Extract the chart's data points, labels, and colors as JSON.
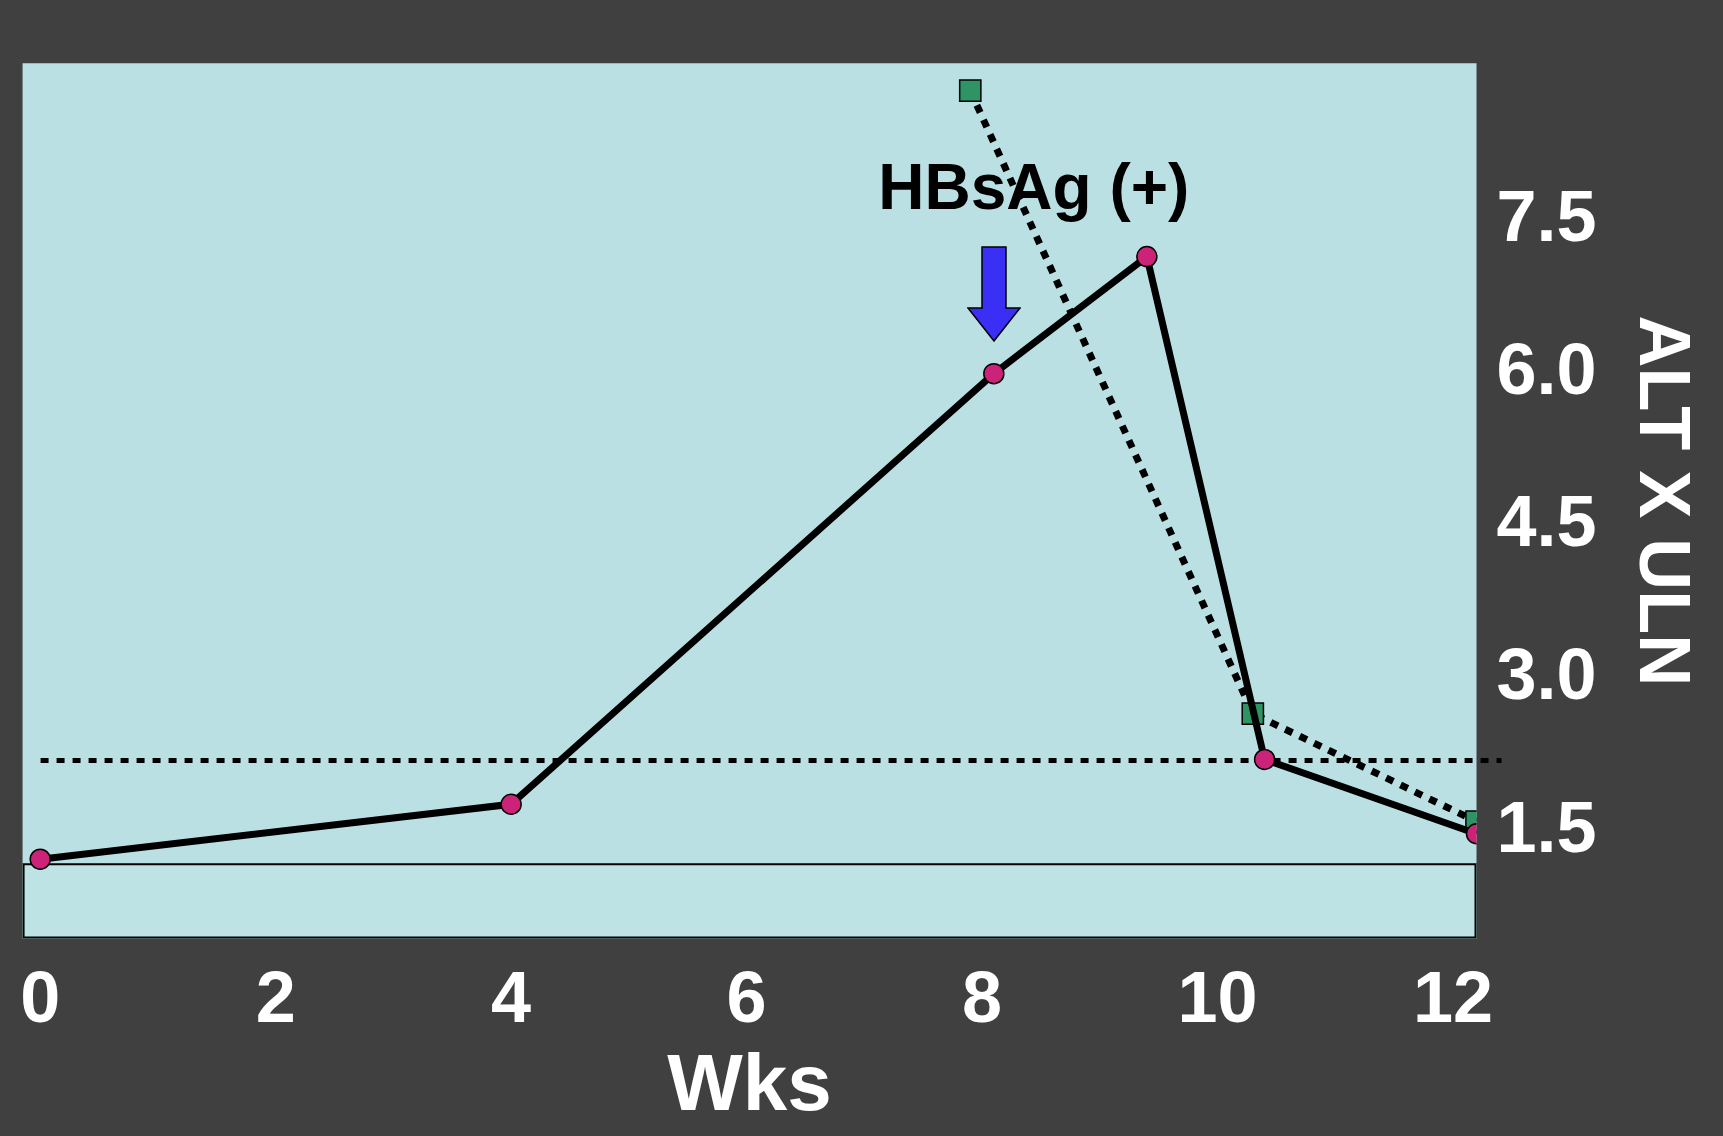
{
  "chart_data": {
    "type": "line",
    "xlabel": "Wks",
    "ylabel": "ALT X ULN",
    "annotations": [
      {
        "text": "HBsAg (+)",
        "x": 8.1,
        "y": 6.0
      }
    ],
    "xlim": [
      -0.15,
      12.2
    ],
    "xticks": [
      0,
      2,
      4,
      6,
      8,
      10,
      12
    ],
    "ylim": [
      0.45,
      9.05
    ],
    "yticks": [
      1.5,
      {
        "value": 3,
        "label": "3.0"
      },
      4.5,
      {
        "value": 6,
        "label": "6.0"
      },
      7.5
    ],
    "series": [
      {
        "color": "#000000",
        "x": [
          0,
          4,
          8.1,
          9.4,
          10.4,
          12.2
        ],
        "values": [
          1.23,
          1.77,
          6.0,
          7.15,
          2.21,
          1.48
        ],
        "marker": "circle",
        "line_style": "solid"
      },
      {
        "color": "#2e9466",
        "x": [
          7.9,
          10.3,
          12.2
        ],
        "values": [
          8.78,
          2.66,
          1.6
        ],
        "marker": "square",
        "line_style": "dotted"
      }
    ],
    "ref_lines": [
      {
        "axis": "y",
        "value": 2.2,
        "line_style": "dotted",
        "color": "#000000"
      }
    ],
    "bands": [
      {
        "axis": "y",
        "from": 0.45,
        "to": 1.18,
        "color": "#bde3e5"
      }
    ]
  }
}
